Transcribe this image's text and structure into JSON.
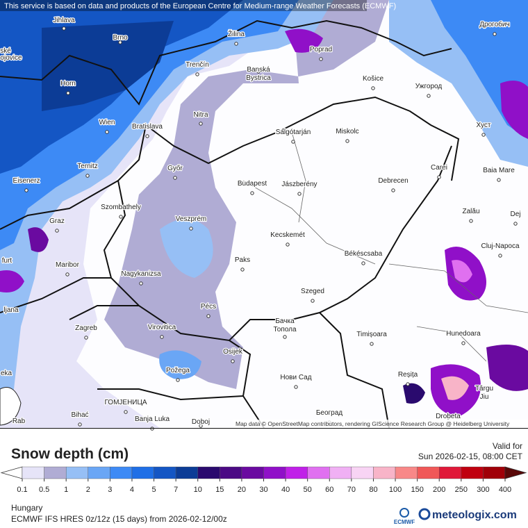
{
  "banner": "This service is based on data and products of the European Centre for Medium-range Weather Forecasts (ECMWF)",
  "attribution": "Map data © OpenStreetMap contributors, rendering GIScience Research Group @ Heidelberg University",
  "cities": [
    "Jihlava",
    "Brno",
    "ské",
    "ojovice",
    "Žilina",
    "Poprad",
    "Дрогобич",
    "Trenčín",
    "Banská",
    "Bystrica",
    "Košice",
    "Ужгород",
    "Horn",
    "Nitra",
    "Wien",
    "Bratislava",
    "Salgótarján",
    "Miskolc",
    "Хуст",
    "Ternitz",
    "Győr",
    "Eisenerz",
    "Budapest",
    "Jászberény",
    "Debrecen",
    "Carei",
    "Baia Mare",
    "Szombathely",
    "Zalău",
    "Dej",
    "Graz",
    "Veszprém",
    "Kecskemét",
    "Cluj-Napoca",
    "furt",
    "Maribor",
    "Paks",
    "Békéscsaba",
    "Nagykanizsa",
    "Szeged",
    "ljana",
    "Pécs",
    "Zagreb",
    "Virovitica",
    "Бачка",
    "Топола",
    "Timișoara",
    "Hunedoara",
    "Osijek",
    "eka",
    "Požega",
    "Нови Сад",
    "Reșița",
    "Târgu",
    "Jiu",
    "ГОМЈЕНИЦА",
    "Bihać",
    "Banja Luka",
    "Doboj",
    "Београд",
    "Drobeta",
    "Rab"
  ],
  "legend": {
    "title": "Snow depth (cm)",
    "ticks": [
      0.1,
      0.5,
      1,
      2,
      3,
      4,
      5,
      7,
      10,
      15,
      20,
      30,
      40,
      50,
      60,
      70,
      80,
      100,
      150,
      200,
      250,
      300,
      400
    ],
    "colors": [
      "#ffffff",
      "#e6e4f8",
      "#b0acd4",
      "#96bff5",
      "#6aa6f5",
      "#3d8af5",
      "#1f6fe6",
      "#1456c4",
      "#0c3c96",
      "#2a0a6e",
      "#4b0a84",
      "#6a0aa0",
      "#9010c8",
      "#c020e8",
      "#e070f0",
      "#f0b0f4",
      "#f8d4f4",
      "#f8b4c8",
      "#f88888",
      "#f05858",
      "#e01838",
      "#c00010",
      "#a00008",
      "#5a0808"
    ]
  },
  "valid_label": "Valid for",
  "valid_time": "Sun 2026-02-15, 08:00 CET",
  "region": "Hungary",
  "model": "ECMWF IFS HRES 0z/12z (15 days) from 2026-02-12/00z",
  "ecmwf_logo": "ECMWF",
  "brand": "meteologix.com"
}
